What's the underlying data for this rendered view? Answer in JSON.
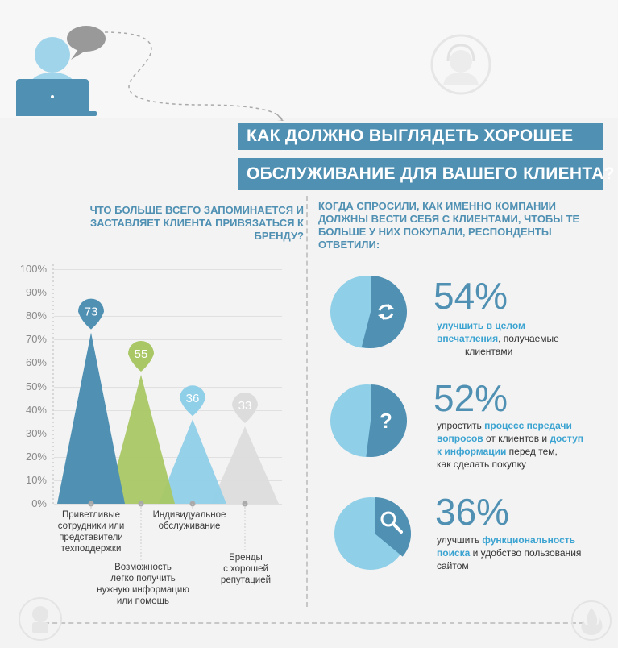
{
  "header": {
    "title_line1": "КАК ДОЛЖНО ВЫГЛЯДЕТЬ ХОРОШЕЕ",
    "title_line2": "ОБСЛУЖИВАНИЕ ДЛЯ ВАШЕГО КЛИЕНТА?"
  },
  "left": {
    "question": "ЧТО БОЛЬШЕ ВСЕГО ЗАПОМИНАЕТСЯ И ЗАСТАВЛЯЕТ КЛИЕНТА ПРИВЯЗАТЬСЯ К БРЕНДУ?"
  },
  "chart_data": {
    "type": "area",
    "yticks": [
      "100%",
      "90%",
      "80%",
      "70%",
      "60%",
      "50%",
      "40%",
      "30%",
      "20%",
      "10%",
      "0%"
    ],
    "ylim": [
      0,
      100
    ],
    "categories": [
      "Приветливые сотрудники или представители техподдержки",
      "Возможность легко получить нужную информацию или помощь",
      "Индивидуальное обслуживание",
      "Бренды с хорошей репутацией"
    ],
    "values": [
      73,
      55,
      36,
      33
    ],
    "value_labels": [
      "73",
      "55",
      "36",
      "33"
    ],
    "colors": [
      "#4f90b3",
      "#a9c765",
      "#8fcfe8",
      "#dcdcdc"
    ]
  },
  "labels": {
    "c1": [
      "Приветливые",
      "сотрудники или",
      "представители",
      "техподдержки"
    ],
    "c2": [
      "Возможность",
      "легко получить",
      "нужную информацию",
      "или помощь"
    ],
    "c3": [
      "Индивидуальное",
      "обслуживание"
    ],
    "c4": [
      "Бренды",
      "с хорошей",
      "репутацией"
    ]
  },
  "right": {
    "question": "КОГДА СПРОСИЛИ, КАК ИМЕННО КОМПАНИИ ДОЛЖНЫ ВЕСТИ СЕБЯ С КЛИЕНТАМИ, ЧТОБЫ ТЕ БОЛЬШЕ У НИХ ПОКУПАЛИ, РЕСПОНДЕНТЫ ОТВЕТИЛИ:",
    "stats": [
      {
        "pct": "54%",
        "icon": "refresh-icon",
        "value": 54
      },
      {
        "pct": "52%",
        "icon": "question-icon",
        "value": 52
      },
      {
        "pct": "36%",
        "icon": "search-icon",
        "value": 36
      }
    ],
    "s1": {
      "a": "улучшить в целом",
      "b": "впечатления",
      "c": ", получаемые",
      "d": "клиентами"
    },
    "s2": {
      "a": "упростить ",
      "b": "процесс передачи",
      "c": "вопросов",
      "d": " от клиентов и ",
      "e": "доступ",
      "f": "к информации",
      "g": " перед тем,",
      "h": "как сделать покупку"
    },
    "s3": {
      "a": "улучшить ",
      "b": "функциональность",
      "c": "поиска",
      "d": " и удобство пользования",
      "e": "сайтом"
    }
  },
  "colors": {
    "accent": "#4f90b3",
    "highlight": "#3aa3d1",
    "light_blue": "#8fcfe8"
  }
}
